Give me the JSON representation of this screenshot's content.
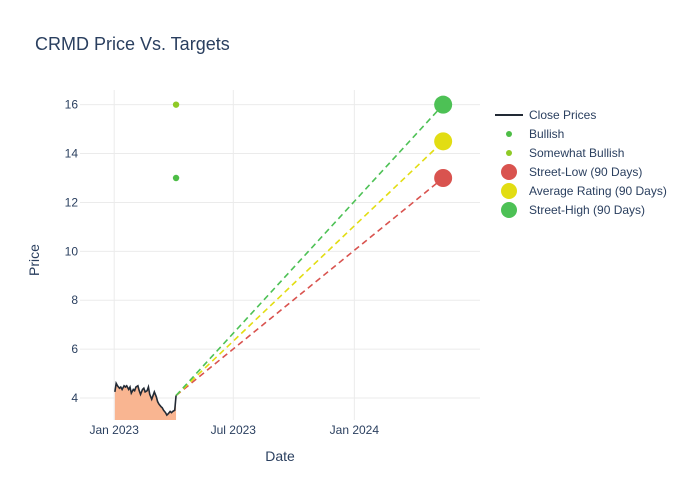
{
  "chart_data": {
    "type": "line",
    "title": "CRMD Price Vs. Targets",
    "xlabel": "Date",
    "ylabel": "Price",
    "xlim": [
      "2022-11-10",
      "2024-07-10"
    ],
    "ylim": [
      3.1,
      16.6
    ],
    "grid": true,
    "legend_position": "right",
    "x_ticks": [
      {
        "date": "2023-01-01",
        "label": "Jan 2023"
      },
      {
        "date": "2023-07-01",
        "label": "Jul 2023"
      },
      {
        "date": "2024-01-01",
        "label": "Jan 2024"
      }
    ],
    "y_ticks": [
      4,
      6,
      8,
      10,
      12,
      14,
      16
    ],
    "series": [
      {
        "name": "Close Prices",
        "kind": "line-area",
        "color": "#222a35",
        "fill_color": "#f9b591",
        "x": [
          "2023-01-02",
          "2023-01-04",
          "2023-01-06",
          "2023-01-09",
          "2023-01-11",
          "2023-01-13",
          "2023-01-16",
          "2023-01-18",
          "2023-01-20",
          "2023-01-23",
          "2023-01-25",
          "2023-01-27",
          "2023-01-30",
          "2023-02-01",
          "2023-02-03",
          "2023-02-06",
          "2023-02-08",
          "2023-02-10",
          "2023-02-13",
          "2023-02-15",
          "2023-02-17",
          "2023-02-20",
          "2023-02-22",
          "2023-02-24",
          "2023-02-27",
          "2023-03-01",
          "2023-03-03",
          "2023-03-06",
          "2023-03-08",
          "2023-03-10",
          "2023-03-13",
          "2023-03-15",
          "2023-03-17",
          "2023-03-20",
          "2023-03-22",
          "2023-03-24",
          "2023-03-27",
          "2023-03-29",
          "2023-03-31",
          "2023-04-03",
          "2023-04-05"
        ],
        "y": [
          4.25,
          4.6,
          4.5,
          4.4,
          4.45,
          4.35,
          4.5,
          4.45,
          4.5,
          4.35,
          4.45,
          4.2,
          4.35,
          4.3,
          4.45,
          4.5,
          4.3,
          4.15,
          4.35,
          4.4,
          4.25,
          4.3,
          4.45,
          4.15,
          3.95,
          4.1,
          4.25,
          4.05,
          3.85,
          3.75,
          3.65,
          3.6,
          3.5,
          3.4,
          3.3,
          3.35,
          3.45,
          3.4,
          3.45,
          3.5,
          4.1
        ]
      },
      {
        "name": "Bullish",
        "kind": "markers",
        "color": "#4dbd46",
        "points": [
          {
            "x": "2023-04-05",
            "y": 13.0
          }
        ]
      },
      {
        "name": "Somewhat Bullish",
        "kind": "markers",
        "color": "#8fca26",
        "points": [
          {
            "x": "2023-04-05",
            "y": 16.0
          }
        ]
      },
      {
        "name": "Street-Low (90 Days)",
        "kind": "target",
        "color": "#d9534f",
        "start": {
          "x": "2023-04-05",
          "y": 4.1
        },
        "end": {
          "x": "2024-05-15",
          "y": 13.0
        }
      },
      {
        "name": "Average Rating (90 Days)",
        "kind": "target",
        "color": "#e2dd13",
        "start": {
          "x": "2023-04-05",
          "y": 4.1
        },
        "end": {
          "x": "2024-05-15",
          "y": 14.5
        }
      },
      {
        "name": "Street-High (90 Days)",
        "kind": "target",
        "color": "#4dc155",
        "start": {
          "x": "2023-04-05",
          "y": 4.1
        },
        "end": {
          "x": "2024-05-15",
          "y": 16.0
        }
      }
    ]
  }
}
